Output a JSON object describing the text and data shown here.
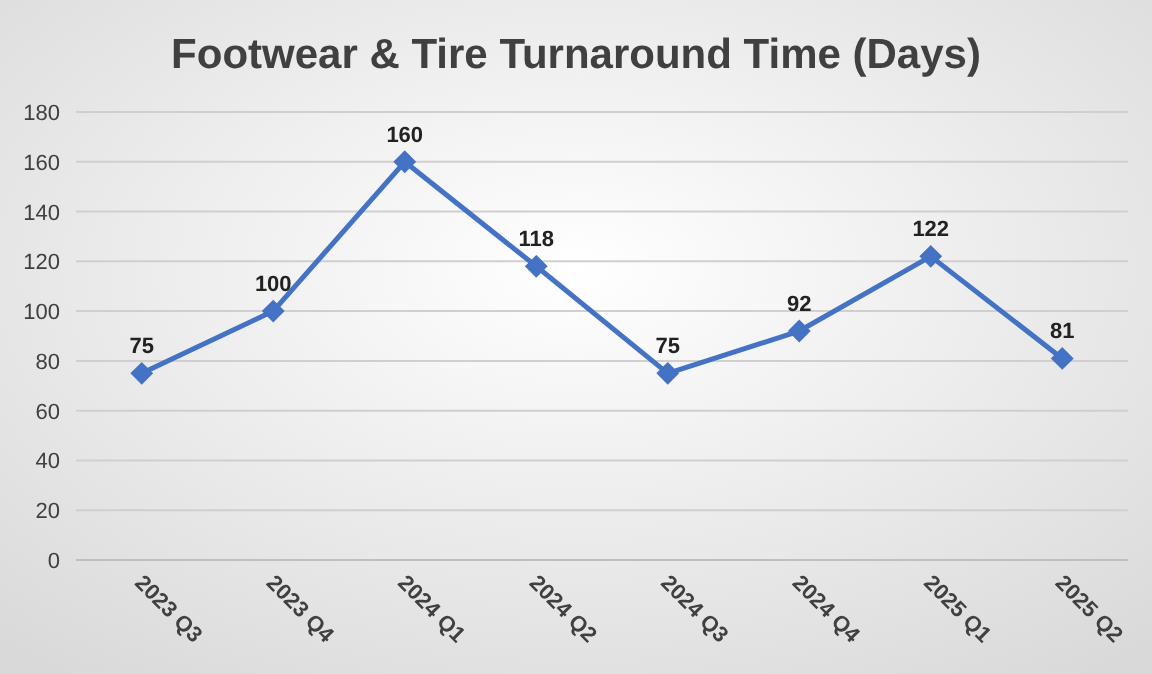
{
  "chart_data": {
    "type": "line",
    "title": "Footwear & Tire Turnaround Time (Days)",
    "categories": [
      "2023 Q3",
      "2023 Q4",
      "2024 Q1",
      "2024 Q2",
      "2024 Q3",
      "2024 Q4",
      "2025 Q1",
      "2025 Q2"
    ],
    "series": [
      {
        "color": "#4472c4",
        "values": [
          75,
          100,
          160,
          118,
          75,
          92,
          122,
          81
        ]
      }
    ],
    "ylim": [
      0,
      180
    ],
    "yticks": [
      0,
      20,
      40,
      60,
      80,
      100,
      120,
      140,
      160,
      180
    ],
    "grid": "y",
    "marker": "diamond",
    "line_style": "solid",
    "data_labels": true
  }
}
